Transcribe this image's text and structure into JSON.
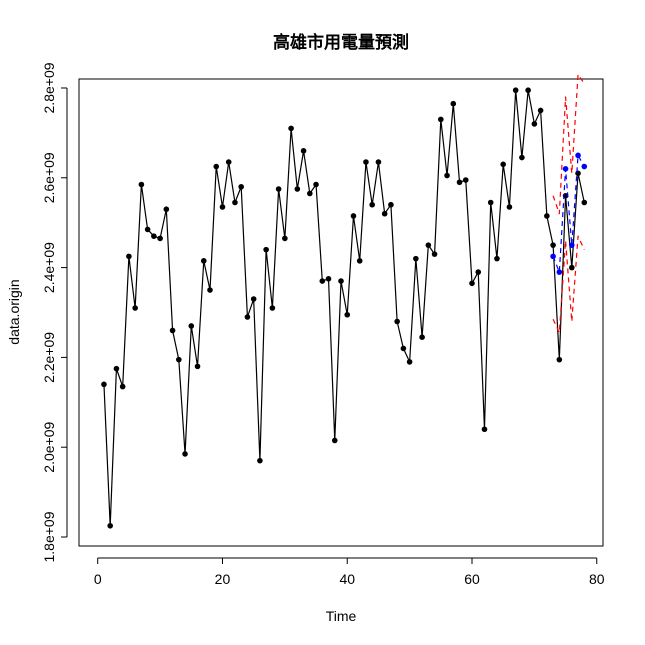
{
  "chart_data": {
    "type": "line",
    "title": "高雄市用電量預測",
    "xlabel": "Time",
    "ylabel": "data.origin",
    "xlim": [
      -3,
      81
    ],
    "ylim": [
      1780000000,
      2820000000
    ],
    "x_ticks": [
      0,
      20,
      40,
      60,
      80
    ],
    "x_tick_labels": [
      "0",
      "20",
      "40",
      "60",
      "80"
    ],
    "y_ticks": [
      1800000000,
      2000000000,
      2200000000,
      2400000000,
      2600000000,
      2800000000
    ],
    "y_tick_labels": [
      "1.8e+09",
      "2.0e+09",
      "2.2e+09",
      "2.4e+09",
      "2.6e+09",
      "2.8e+09"
    ],
    "grid": false,
    "colors": {
      "observed": "#000000",
      "forecast": "#0000ff",
      "interval": "#ff0000"
    },
    "series": [
      {
        "style": "line-with-points",
        "x": [
          1,
          2,
          3,
          4,
          5,
          6,
          7,
          8,
          9,
          10,
          11,
          12,
          13,
          14,
          15,
          16,
          17,
          18,
          19,
          20,
          21,
          22,
          23,
          24,
          25,
          26,
          27,
          28,
          29,
          30,
          31,
          32,
          33,
          34,
          35,
          36,
          37,
          38,
          39,
          40,
          41,
          42,
          43,
          44,
          45,
          46,
          47,
          48,
          49,
          50,
          51,
          52,
          53,
          54,
          55,
          56,
          57,
          58,
          59,
          60,
          61,
          62,
          63,
          64,
          65,
          66,
          67,
          68,
          69,
          70,
          71,
          72,
          73,
          74,
          75,
          76,
          77,
          78
        ],
        "y": [
          2140000000,
          1825000000,
          2175000000,
          2135000000,
          2425000000,
          2310000000,
          2585000000,
          2485000000,
          2470000000,
          2465000000,
          2530000000,
          2260000000,
          2195000000,
          1985000000,
          2270000000,
          2180000000,
          2415000000,
          2350000000,
          2625000000,
          2535000000,
          2635000000,
          2545000000,
          2580000000,
          2290000000,
          2330000000,
          1970000000,
          2440000000,
          2310000000,
          2575000000,
          2465000000,
          2710000000,
          2575000000,
          2660000000,
          2565000000,
          2585000000,
          2370000000,
          2375000000,
          2015000000,
          2370000000,
          2295000000,
          2515000000,
          2415000000,
          2635000000,
          2540000000,
          2635000000,
          2520000000,
          2540000000,
          2280000000,
          2220000000,
          2190000000,
          2420000000,
          2245000000,
          2450000000,
          2430000000,
          2730000000,
          2605000000,
          2765000000,
          2590000000,
          2595000000,
          2365000000,
          2390000000,
          2040000000,
          2545000000,
          2420000000,
          2630000000,
          2535000000,
          2795000000,
          2645000000,
          2795000000,
          2720000000,
          2750000000,
          2515000000,
          2450000000,
          2195000000,
          2560000000,
          2400000000,
          2610000000,
          2545000000
        ]
      },
      {
        "style": "dashed-with-points",
        "x": [
          73,
          74,
          75,
          76,
          77,
          78
        ],
        "y": [
          2425000000,
          2390000000,
          2620000000,
          2450000000,
          2650000000,
          2625000000
        ]
      },
      {
        "style": "dashed",
        "x": [
          73,
          74,
          75,
          76,
          77,
          78
        ],
        "y": [
          2560000000,
          2520000000,
          2780000000,
          2610000000,
          2830000000,
          2810000000
        ]
      },
      {
        "style": "dashed",
        "x": [
          73,
          74,
          75,
          76,
          77,
          78
        ],
        "y": [
          2285000000,
          2255000000,
          2460000000,
          2280000000,
          2470000000,
          2440000000
        ]
      }
    ]
  }
}
